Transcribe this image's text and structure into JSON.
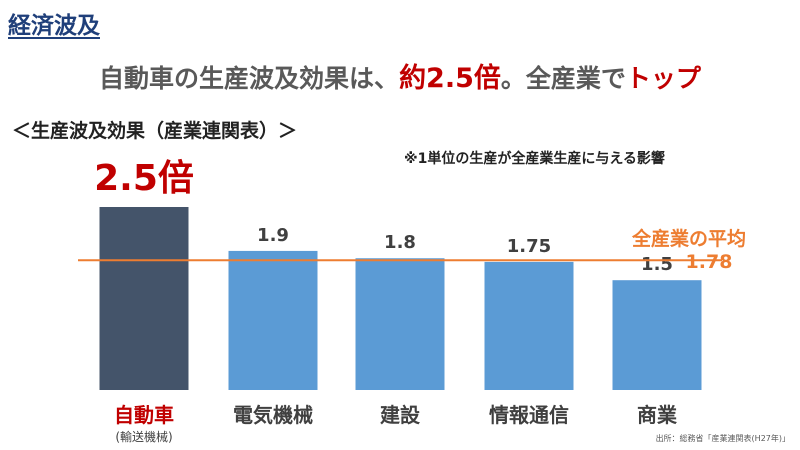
{
  "slide": {
    "section_title": "経済波及",
    "headline_pre": "自動車の生産波及効果は、",
    "headline_value": "約2.5倍",
    "headline_mid": "。全産業で",
    "headline_top": "トップ",
    "chart_title": "＜生産波及効果（産業連関表）＞",
    "note": "※1単位の生産が全産業生産に与える影響",
    "source": "出所：総務省「産業連関表(H27年)」"
  },
  "colors": {
    "highlight_bar": "#44546a",
    "bar": "#5b9bd5",
    "average_line": "#ed7d31",
    "highlight_text": "#c00000",
    "category_text": "#404040"
  },
  "chart_data": {
    "type": "bar",
    "categories": [
      "自動車",
      "電気機械",
      "建設",
      "情報通信",
      "商業"
    ],
    "category_subtitles": [
      "(輸送機械)",
      "",
      "",
      "",
      ""
    ],
    "values": [
      2.5,
      1.9,
      1.8,
      1.75,
      1.5
    ],
    "value_labels": [
      "2.5倍",
      "1.9",
      "1.8",
      "1.75",
      "1.5"
    ],
    "highlight_index": 0,
    "reference_line": {
      "label": "全産業の平均",
      "value": 1.78,
      "value_label": "1.78"
    },
    "xlabel": "",
    "ylabel": "",
    "grid": false
  }
}
